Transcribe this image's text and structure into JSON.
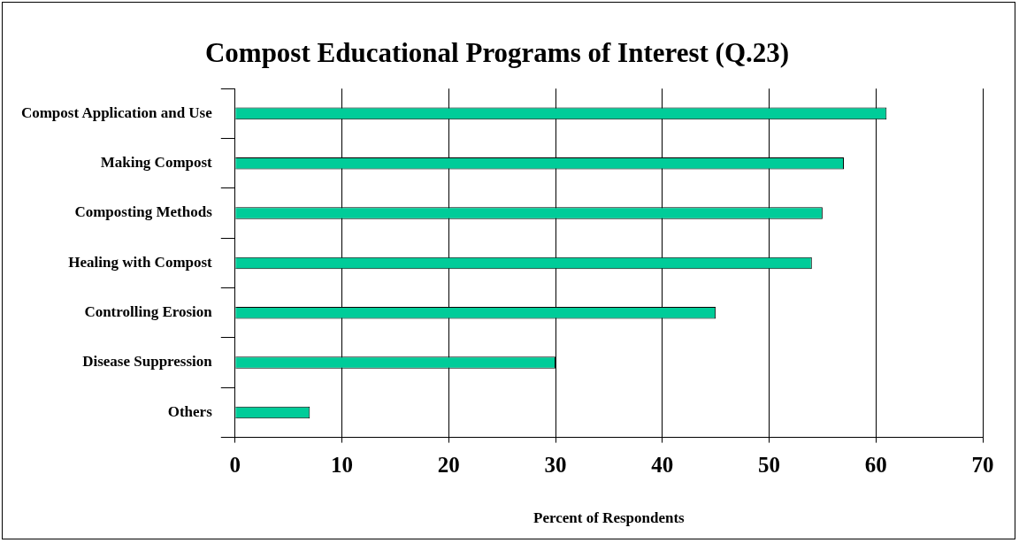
{
  "chart_data": {
    "type": "bar",
    "orientation": "horizontal",
    "title": "Compost Educational Programs of Interest (Q.23)",
    "xlabel": "Percent of Respondents",
    "categories": [
      "Compost Application and Use",
      "Making Compost",
      "Composting Methods",
      "Healing with Compost",
      "Controlling Erosion",
      "Disease Suppression",
      "Others"
    ],
    "values": [
      61,
      57,
      55,
      54,
      45,
      30,
      7
    ],
    "color": "#00cc99",
    "xlim": [
      0,
      70
    ],
    "xticks": [
      0,
      10,
      20,
      30,
      40,
      50,
      60,
      70
    ],
    "grid": "x",
    "legend": false
  }
}
